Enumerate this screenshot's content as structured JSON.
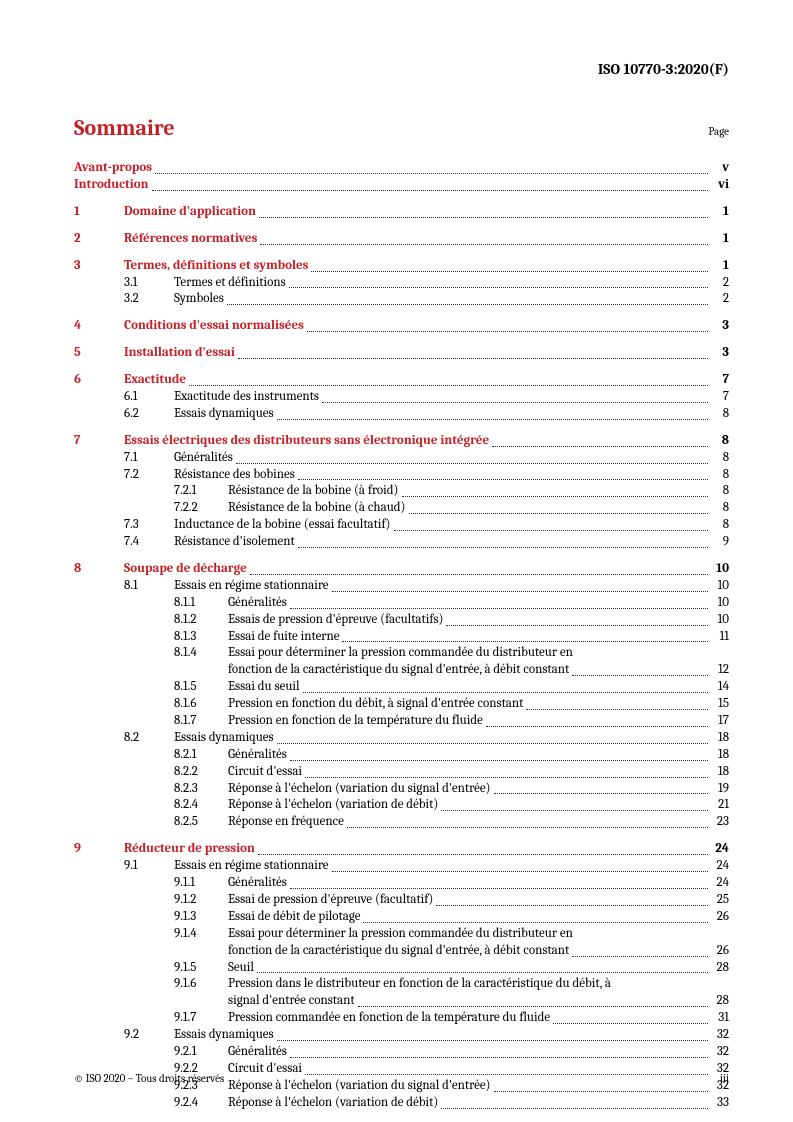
{
  "doc_id": "ISO 10770-3:2020(F)",
  "title": "Sommaire",
  "page_header": "Page",
  "footer_left": "© ISO 2020 – Tous droits réservés",
  "footer_right": "iii",
  "colors": {
    "accent": "#c42027",
    "text": "#000000",
    "background": "#ffffff"
  },
  "front": [
    {
      "label": "Avant-propos",
      "page": "v"
    },
    {
      "label": "Introduction",
      "page": "vi"
    }
  ],
  "sections": [
    {
      "num": "1",
      "label": "Domaine d'application",
      "page": "1"
    },
    {
      "num": "2",
      "label": "Références normatives",
      "page": "1"
    },
    {
      "num": "3",
      "label": "Termes, définitions et symboles",
      "page": "1",
      "subs": [
        {
          "num": "3.1",
          "label": "Termes et définitions",
          "page": "2"
        },
        {
          "num": "3.2",
          "label": "Symboles",
          "page": "2"
        }
      ]
    },
    {
      "num": "4",
      "label": "Conditions d'essai normalisées",
      "page": "3"
    },
    {
      "num": "5",
      "label": "Installation d'essai",
      "page": "3"
    },
    {
      "num": "6",
      "label": "Exactitude",
      "page": "7",
      "subs": [
        {
          "num": "6.1",
          "label": "Exactitude des instruments",
          "page": "7"
        },
        {
          "num": "6.2",
          "label": "Essais dynamiques",
          "page": "8"
        }
      ]
    },
    {
      "num": "7",
      "label": "Essais électriques des distributeurs sans électronique intégrée",
      "page": "8",
      "subs": [
        {
          "num": "7.1",
          "label": "Généralités",
          "page": "8"
        },
        {
          "num": "7.2",
          "label": "Résistance des bobines",
          "page": "8",
          "subs": [
            {
              "num": "7.2.1",
              "label": "Résistance de la bobine (à froid)",
              "page": "8"
            },
            {
              "num": "7.2.2",
              "label": "Résistance de la bobine (à chaud)",
              "page": "8"
            }
          ]
        },
        {
          "num": "7.3",
          "label": "Inductance de la bobine (essai facultatif)",
          "page": "8"
        },
        {
          "num": "7.4",
          "label": "Résistance d'isolement",
          "page": "9"
        }
      ]
    },
    {
      "num": "8",
      "label": "Soupape de décharge",
      "page": "10",
      "subs": [
        {
          "num": "8.1",
          "label": "Essais en régime stationnaire",
          "page": "10",
          "subs": [
            {
              "num": "8.1.1",
              "label": "Généralités",
              "page": "10"
            },
            {
              "num": "8.1.2",
              "label": "Essais de pression d'épreuve (facultatifs)",
              "page": "10"
            },
            {
              "num": "8.1.3",
              "label": "Essai de fuite interne",
              "page": "11"
            },
            {
              "num": "8.1.4",
              "wrap": true,
              "line1": "Essai pour déterminer la pression commandée du distributeur en",
              "line2": "fonction de la caractéristique du signal d'entrée, à débit constant",
              "page": "12"
            },
            {
              "num": "8.1.5",
              "label": "Essai du seuil",
              "page": "14"
            },
            {
              "num": "8.1.6",
              "label": "Pression en fonction du débit, à signal d'entrée constant",
              "page": "15"
            },
            {
              "num": "8.1.7",
              "label": "Pression en fonction de la température du fluide",
              "page": "17"
            }
          ]
        },
        {
          "num": "8.2",
          "label": "Essais dynamiques",
          "page": "18",
          "subs": [
            {
              "num": "8.2.1",
              "label": "Généralités",
              "page": "18"
            },
            {
              "num": "8.2.2",
              "label": "Circuit d'essai",
              "page": "18"
            },
            {
              "num": "8.2.3",
              "label": "Réponse à l'échelon (variation du signal d'entrée)",
              "page": "19"
            },
            {
              "num": "8.2.4",
              "label": "Réponse à l'échelon (variation de débit)",
              "page": "21"
            },
            {
              "num": "8.2.5",
              "label": "Réponse en fréquence",
              "page": "23"
            }
          ]
        }
      ]
    },
    {
      "num": "9",
      "label": "Réducteur de pression",
      "page": "24",
      "subs": [
        {
          "num": "9.1",
          "label": "Essais en régime stationnaire",
          "page": "24",
          "subs": [
            {
              "num": "9.1.1",
              "label": "Généralités",
              "page": "24"
            },
            {
              "num": "9.1.2",
              "label": "Essai de pression d'épreuve (facultatif)",
              "page": "25"
            },
            {
              "num": "9.1.3",
              "label": "Essai de débit de pilotage",
              "page": "26"
            },
            {
              "num": "9.1.4",
              "wrap": true,
              "line1": "Essai pour déterminer la pression commandée du distributeur en",
              "line2": "fonction de la caractéristique du signal d'entrée, à débit constant",
              "page": "26"
            },
            {
              "num": "9.1.5",
              "label": "Seuil",
              "page": "28"
            },
            {
              "num": "9.1.6",
              "wrap": true,
              "line1": "Pression dans le distributeur en fonction de la caractéristique du débit, à",
              "line2": "signal d'entrée constant",
              "page": "28"
            },
            {
              "num": "9.1.7",
              "label": "Pression commandée en fonction de la température du fluide",
              "page": "31"
            }
          ]
        },
        {
          "num": "9.2",
          "label": "Essais dynamiques",
          "page": "32",
          "subs": [
            {
              "num": "9.2.1",
              "label": "Généralités",
              "page": "32"
            },
            {
              "num": "9.2.2",
              "label": "Circuit d'essai",
              "page": "32"
            },
            {
              "num": "9.2.3",
              "label": "Réponse à l'échelon (variation du signal d'entrée)",
              "page": "32"
            },
            {
              "num": "9.2.4",
              "label": "Réponse à l'échelon (variation de débit)",
              "page": "33"
            }
          ]
        }
      ]
    }
  ]
}
